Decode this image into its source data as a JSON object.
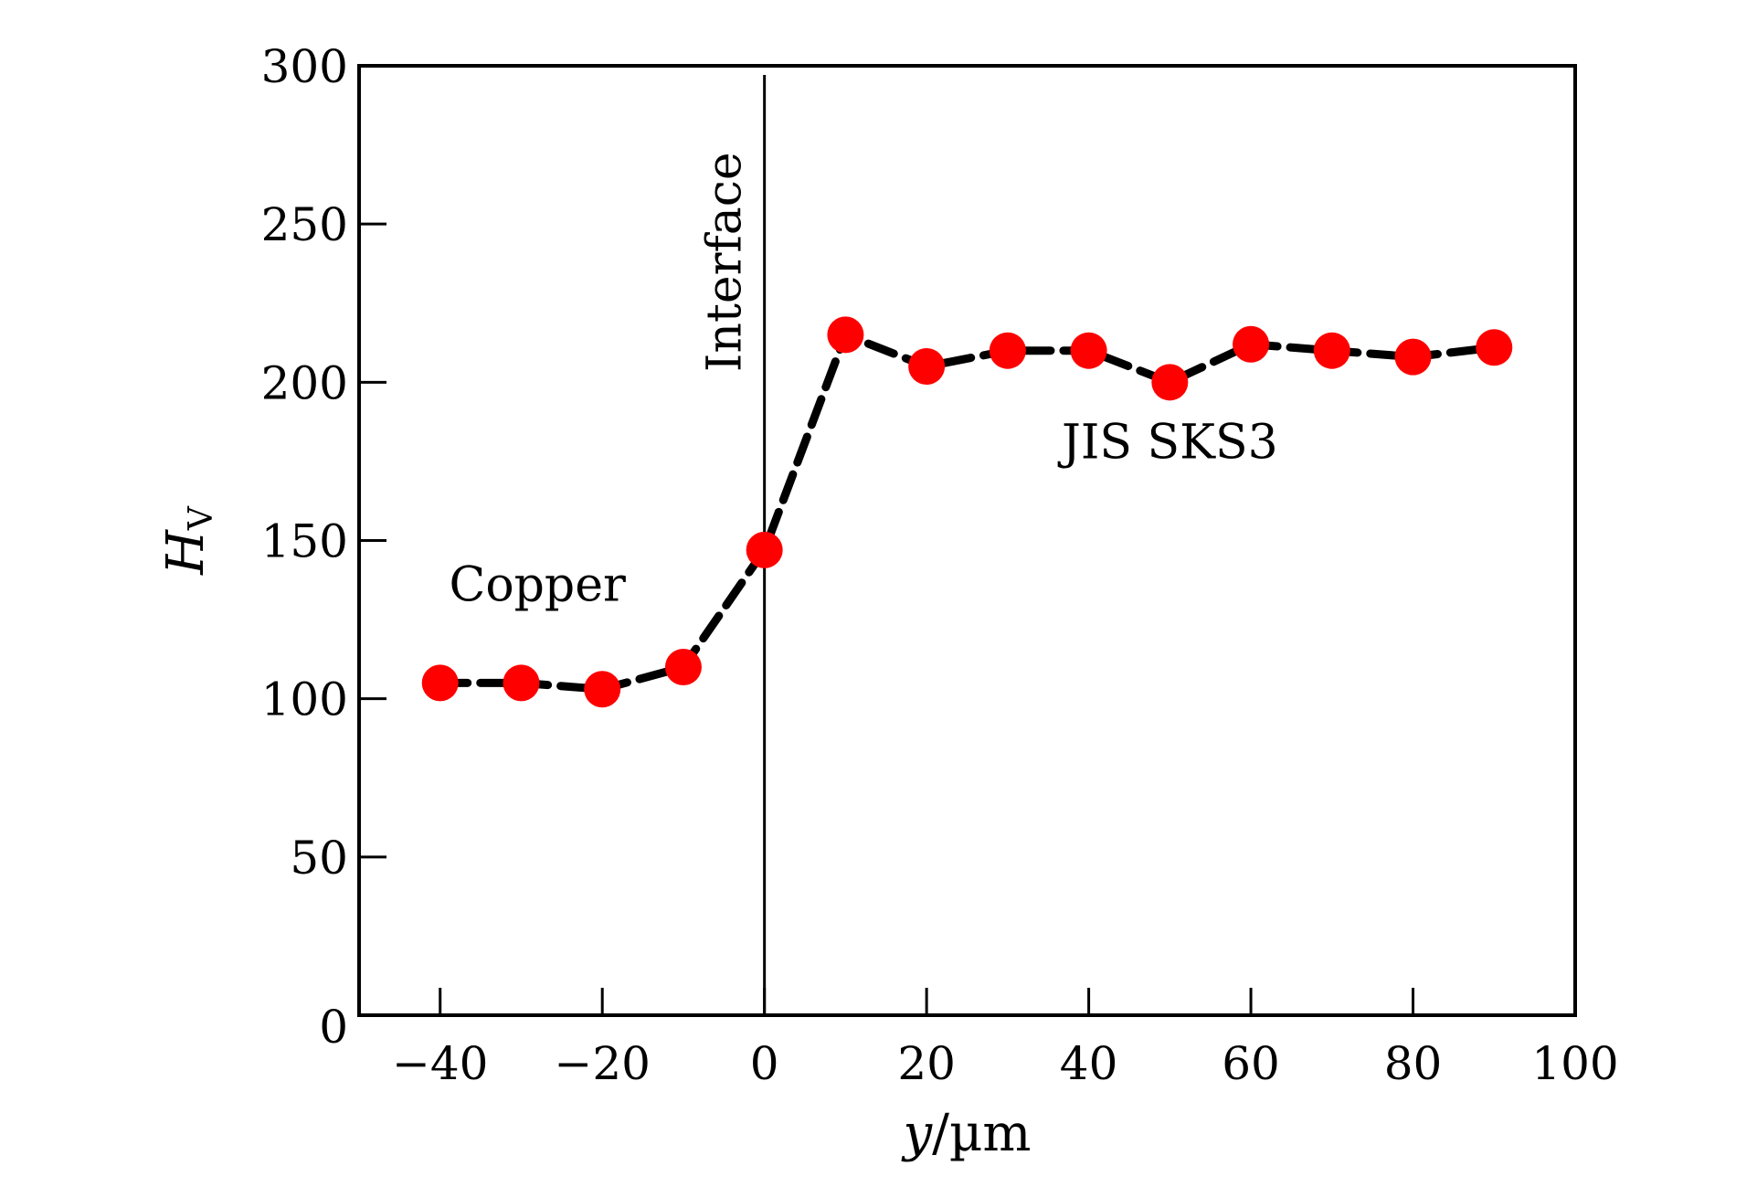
{
  "chart_data": {
    "type": "line",
    "xlabel_italic": "y",
    "xlabel_rest": "/µm",
    "ylabel_main": "H",
    "ylabel_sub": "V",
    "xlim": [
      -50,
      100
    ],
    "ylim": [
      0,
      300
    ],
    "xticks": [
      -40,
      -20,
      0,
      20,
      40,
      60,
      80,
      100
    ],
    "xtick_labels": [
      "−40",
      "−20",
      "0",
      "20",
      "40",
      "60",
      "80",
      "100"
    ],
    "yticks": [
      0,
      50,
      100,
      150,
      200,
      250,
      300
    ],
    "ytick_labels": [
      "0",
      "50",
      "100",
      "150",
      "200",
      "250",
      "300"
    ],
    "grid": false,
    "series": [
      {
        "x": [
          -40,
          -30,
          -20,
          -10,
          0,
          10,
          20,
          30,
          40,
          50,
          60,
          70,
          80,
          90
        ],
        "y": [
          105,
          105,
          103,
          110,
          147,
          215,
          205,
          210,
          210,
          200,
          212,
          210,
          208,
          211
        ],
        "color": "#ff0000",
        "line_color": "#000000",
        "line_style": "dashed"
      }
    ],
    "interface_line": {
      "x": 0,
      "label": "Interface"
    },
    "annotations": [
      {
        "text": "Copper",
        "x": -28,
        "y": 131
      },
      {
        "text": "JIS SKS3",
        "x": 50,
        "y": 176
      }
    ]
  }
}
